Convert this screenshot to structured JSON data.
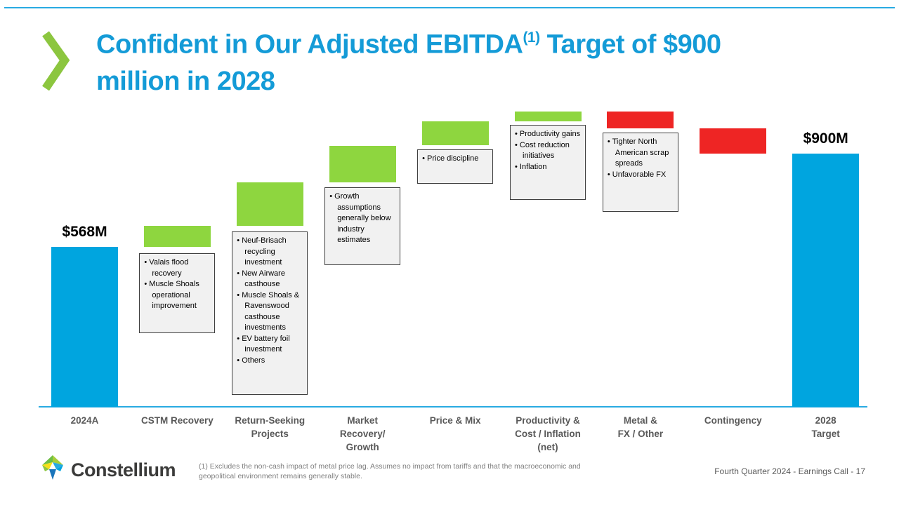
{
  "header": {
    "title_before_sup": "Confident in Our Adjusted EBITDA",
    "title_sup": "(1)",
    "title_after_sup": " Target of $900\nmillion in 2028"
  },
  "colors": {
    "title_blue": "#149BD7",
    "bar_blue": "#00A5DF",
    "bar_green": "#8ED63F",
    "bar_red": "#EE2524",
    "axis_blue": "#29ABE2",
    "chevron_green": "#8CC63F"
  },
  "chart_data": {
    "type": "bar",
    "subtype": "waterfall",
    "unit": "$M",
    "ylim": [
      0,
      1100
    ],
    "grid": false,
    "labeled_values": {
      "start": "$568M",
      "end": "$900M"
    },
    "bars": [
      {
        "label": "2024A",
        "kind": "total",
        "value": 568,
        "value_label": "$568M"
      },
      {
        "label": "CSTM Recovery",
        "kind": "increase",
        "value": 75,
        "estimated": true,
        "callout": [
          "Valais flood recovery",
          "Muscle Shoals operational improvement"
        ]
      },
      {
        "label": "Return-Seeking\nProjects",
        "kind": "increase",
        "value": 155,
        "estimated": true,
        "callout": [
          "Neuf-Brisach recycling investment",
          "New Airware casthouse",
          "Muscle Shoals & Ravenswood casthouse investments",
          "EV battery foil investment",
          "Others"
        ]
      },
      {
        "label": "Market\nRecovery/\nGrowth",
        "kind": "increase",
        "value": 130,
        "estimated": true,
        "callout": [
          "Growth assumptions generally below industry estimates"
        ]
      },
      {
        "label": "Price & Mix",
        "kind": "increase",
        "value": 85,
        "estimated": true,
        "callout": [
          "Price discipline"
        ]
      },
      {
        "label": "Productivity &\nCost / Inflation\n(net)",
        "kind": "increase",
        "value": 35,
        "estimated": true,
        "callout": [
          "Productivity gains",
          "Cost reduction initiatives",
          "Inflation"
        ]
      },
      {
        "label": "Metal &\nFX / Other",
        "kind": "decrease",
        "value": 60,
        "estimated": true,
        "callout": [
          "Tighter North American scrap spreads",
          "Unfavorable FX"
        ]
      },
      {
        "label": "Contingency",
        "kind": "decrease",
        "value": 88,
        "estimated": true
      },
      {
        "label": "2028\nTarget",
        "kind": "total",
        "value": 900,
        "value_label": "$900M"
      }
    ]
  },
  "footer": {
    "logo_text": "Constellium",
    "footnote": "(1) Excludes the non-cash impact of metal price lag. Assumes no impact from tariffs and that the macroeconomic and geopolitical environment remains generally stable.",
    "page_info": "Fourth Quarter 2024 -  Earnings Call - 17"
  }
}
